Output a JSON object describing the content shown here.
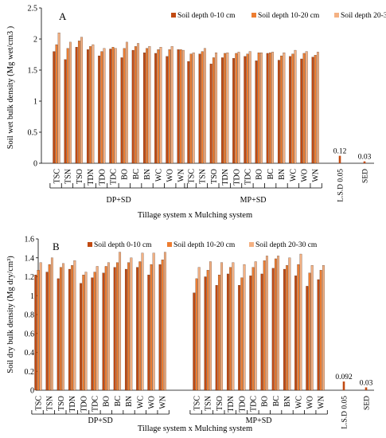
{
  "colors": {
    "depth_0_10": "#c14a12",
    "depth_10_20": "#ed7d31",
    "depth_20_30": "#f4b183",
    "stat_bar": "#c14a12",
    "axis": "#000000"
  },
  "chart_data": [
    {
      "type": "bar",
      "panel_letter": "A",
      "ylabel": "Soil wet  bulk density  (Mg wet/cm3 )",
      "xlabel": "Tillage system x Mulching system",
      "ylim": [
        0,
        2.5
      ],
      "yticks": [
        "0",
        "0.5",
        "1",
        "1.5",
        "2",
        "2.5"
      ],
      "grid": false,
      "legend_position": "top",
      "categories": [
        "TSC",
        "TSN",
        "TSO",
        "TDN",
        "TDO",
        "TDC",
        "BO",
        "BC",
        "BN",
        "WC",
        "WO",
        "WN"
      ],
      "groups": [
        {
          "name": "DP+SD",
          "series": [
            {
              "name": "Soil depth 0-10 cm",
              "values": [
                1.8,
                1.67,
                1.87,
                1.83,
                1.73,
                1.84,
                1.7,
                1.82,
                1.78,
                1.77,
                1.72,
                1.83
              ]
            },
            {
              "name": "Soil depth 10-20 cm",
              "values": [
                1.91,
                1.85,
                1.97,
                1.88,
                1.8,
                1.87,
                1.85,
                1.88,
                1.85,
                1.83,
                1.83,
                1.83
              ]
            },
            {
              "name": "Soil depth 20-30 cm",
              "values": [
                2.1,
                1.95,
                2.03,
                1.91,
                1.85,
                1.85,
                1.95,
                1.93,
                1.88,
                1.87,
                1.88,
                1.82
              ]
            }
          ]
        },
        {
          "name": "MP+SD",
          "series": [
            {
              "name": "Soil depth 0-10 cm",
              "values": [
                1.64,
                1.76,
                1.6,
                1.7,
                1.69,
                1.72,
                1.65,
                1.77,
                1.66,
                1.72,
                1.68,
                1.71
              ]
            },
            {
              "name": "Soil depth 10-20 cm",
              "values": [
                1.76,
                1.8,
                1.7,
                1.77,
                1.77,
                1.76,
                1.78,
                1.78,
                1.73,
                1.76,
                1.77,
                1.74
              ]
            },
            {
              "name": "Soil depth 20-30 cm",
              "values": [
                1.78,
                1.85,
                1.78,
                1.78,
                1.79,
                1.8,
                1.78,
                1.79,
                1.78,
                1.82,
                1.8,
                1.79
              ]
            }
          ]
        }
      ],
      "stats": [
        {
          "label": "L.S.D 0.05",
          "value": 0.12,
          "value_label": "0.12"
        },
        {
          "label": "SED",
          "value": 0.03,
          "value_label": "0.03"
        }
      ]
    },
    {
      "type": "bar",
      "panel_letter": "B",
      "ylabel": "Soil dry bulk density  (Mg dry/cm³)",
      "xlabel": "Tillage system x Mulching system",
      "ylim": [
        0,
        1.6
      ],
      "yticks": [
        "0",
        "0.2",
        "0.4",
        "0.6",
        "0.8",
        "1",
        "1.2",
        "1.4",
        "1.6"
      ],
      "grid": false,
      "legend_position": "top",
      "categories": [
        "TSC",
        "TSN",
        "TSO",
        "TDN",
        "TDO",
        "TDC",
        "BO",
        "BC",
        "BN",
        "WC",
        "WO",
        "WN"
      ],
      "groups": [
        {
          "name": "DP+SD",
          "series": [
            {
              "name": "Soil depth 0-10 cm",
              "values": [
                1.22,
                1.25,
                1.18,
                1.28,
                1.13,
                1.19,
                1.24,
                1.3,
                1.28,
                1.3,
                1.22,
                1.33
              ]
            },
            {
              "name": "Soil depth 10-20 cm",
              "values": [
                1.27,
                1.33,
                1.3,
                1.32,
                1.22,
                1.25,
                1.31,
                1.35,
                1.35,
                1.36,
                1.33,
                1.38
              ]
            },
            {
              "name": "Soil depth 20-30 cm",
              "values": [
                1.35,
                1.4,
                1.34,
                1.37,
                1.25,
                1.31,
                1.35,
                1.46,
                1.4,
                1.45,
                1.45,
                1.46
              ]
            }
          ]
        },
        {
          "name": "MP+SD",
          "series": [
            {
              "name": "Soil depth 0-10 cm",
              "values": [
                1.03,
                1.2,
                1.11,
                1.23,
                1.11,
                1.21,
                1.23,
                1.29,
                1.28,
                1.21,
                1.1,
                1.17
              ]
            },
            {
              "name": "Soil depth 10-20 cm",
              "values": [
                1.18,
                1.27,
                1.22,
                1.3,
                1.19,
                1.3,
                1.37,
                1.39,
                1.32,
                1.33,
                1.24,
                1.27
              ]
            },
            {
              "name": "Soil depth 20-30 cm",
              "values": [
                1.3,
                1.36,
                1.35,
                1.35,
                1.33,
                1.36,
                1.42,
                1.42,
                1.4,
                1.44,
                1.32,
                1.32
              ]
            }
          ]
        }
      ],
      "stats": [
        {
          "label": "L.S.D 0.05",
          "value": 0.092,
          "value_label": "0.092"
        },
        {
          "label": "SED",
          "value": 0.03,
          "value_label": "0.03"
        }
      ]
    }
  ]
}
